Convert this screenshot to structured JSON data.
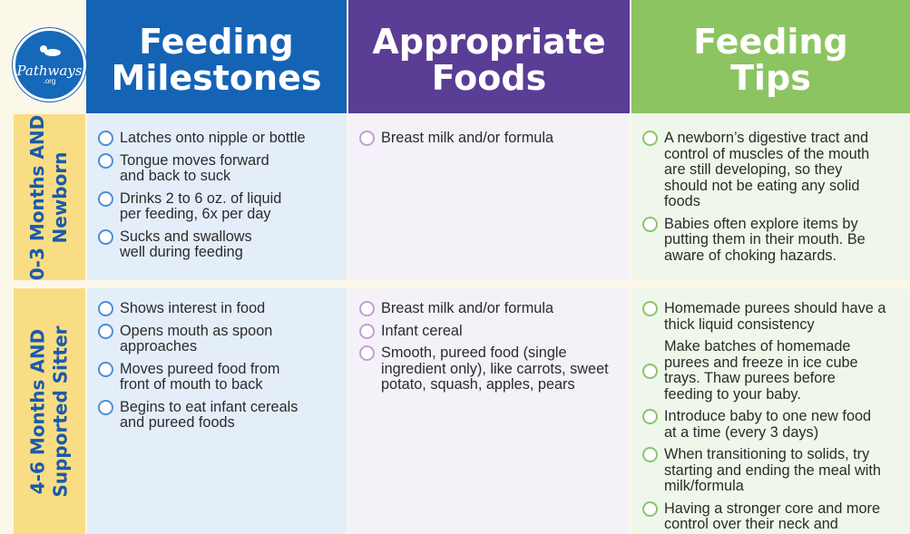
{
  "logo": {
    "text": "Pathways",
    "sub": ".org"
  },
  "headers": [
    {
      "line1": "Feeding",
      "line2": "Milestones"
    },
    {
      "line1": "Appropriate",
      "line2": "Foods"
    },
    {
      "line1": "Feeding",
      "line2": "Tips"
    }
  ],
  "rows": [
    {
      "age": {
        "line1": "0-3 Months AND",
        "line2": "Newborn"
      },
      "milestones": [
        "Latches onto nipple or bottle",
        "Tongue moves forward and back to suck",
        "Drinks 2 to 6 oz. of liquid per feeding, 6x per day",
        "Sucks and swallows well during feeding"
      ],
      "foods": [
        "Breast milk and/or formula"
      ],
      "tips": [
        "A newborn’s digestive tract and control of muscles of the mouth are still developing, so they should not be eating any solid foods",
        "Babies often explore items by putting them in their mouth. Be aware of choking hazards."
      ]
    },
    {
      "age": {
        "line1": "4-6 Months AND",
        "line2": "Supported Sitter"
      },
      "milestones": [
        "Shows interest in food",
        "Opens mouth as spoon approaches",
        "Moves pureed food from front of mouth to back",
        "Begins to eat infant cereals and pureed foods"
      ],
      "foods": [
        "Breast milk and/or formula",
        "Infant cereal",
        "Smooth, pureed food (single ingredient only), like carrots, sweet potato, squash, apples, pears"
      ],
      "tips": [
        "Homemade purees should have a thick liquid consistency",
        "Make batches of homemade purees and freeze in ice cube trays. Thaw purees before feeding to your baby.",
        "Introduce baby to one new food at a time (every 3 days)",
        "When transitioning to solids, try starting and ending the meal with milk/formula",
        "Having a stronger core and more control over their neck and"
      ]
    }
  ],
  "colors": {
    "blue": "#1563b5",
    "purple": "#5a3d95",
    "green": "#8cc462",
    "yellow": "#f9dd84"
  }
}
